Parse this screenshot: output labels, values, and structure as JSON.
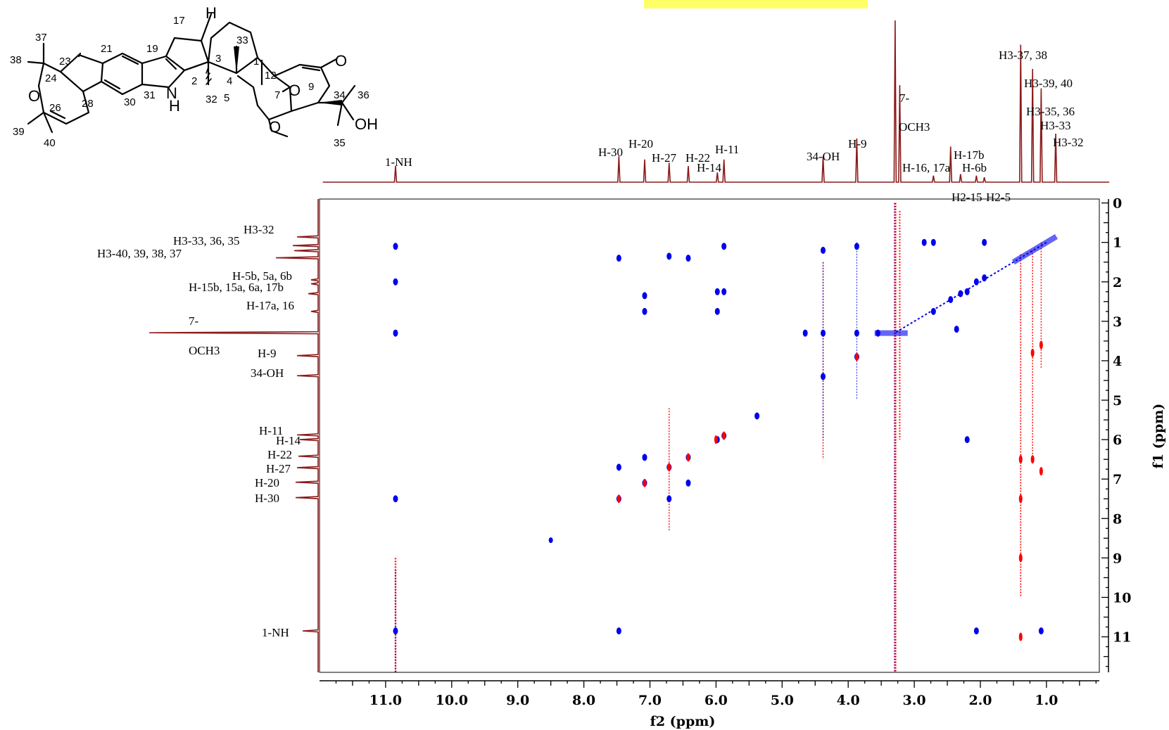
{
  "structure": {
    "atom_labels": [
      "37",
      "38",
      "24",
      "23",
      "21",
      "19",
      "17",
      "33",
      "3",
      "1",
      "2",
      "31",
      "30",
      "28",
      "26",
      "39",
      "40",
      "4",
      "5",
      "12",
      "7",
      "9",
      "34",
      "36",
      "35",
      "32",
      "H",
      "O",
      "O",
      "O",
      "N",
      "H",
      "OH"
    ],
    "methoxy_label": "O"
  },
  "top_labels": [
    "1-NH",
    "H-30",
    "H-20",
    "H-27",
    "H-22",
    "H-14",
    "H-11",
    "34-OH",
    "H-9",
    "7-",
    "OCH3",
    "H-16, 17a",
    "H-17b",
    "H-6b",
    "H2-15",
    "H2-5",
    "H3-37, 38",
    "H3-39, 40",
    "H3-35, 36",
    "H3-33",
    "H3-32"
  ],
  "left_labels": [
    "H3-32",
    "H3-33, 36, 35",
    "H3-40, 39, 38, 37",
    "H-5b, 5a, 6b",
    "H-15b, 15a, 6a, 17b",
    "H-17a, 16",
    "7-",
    "OCH3",
    "H-9",
    "34-OH",
    "H-11",
    "H-14",
    "H-22",
    "H-27",
    "H-20",
    "H-30",
    "1-NH"
  ],
  "colors": {
    "spectrum": "#8b1a1a",
    "positive": "#0000ee",
    "negative": "#ff0000",
    "highlight": "#ffff66"
  },
  "chart_data": {
    "type": "2d-nmr",
    "x_axis": {
      "label": "f2 (ppm)",
      "min": 0.2,
      "max": 12.0,
      "reversed": true,
      "ticks": [
        "1.0",
        "2.0",
        "3.0",
        "4.0",
        "5.0",
        "6.0",
        "7.0",
        "8.0",
        "9.0",
        "10.0",
        "11.0"
      ]
    },
    "y_axis": {
      "label": "f1 (ppm)",
      "min": -0.1,
      "max": 11.9,
      "ticks": [
        "0",
        "1",
        "2",
        "3",
        "4",
        "5",
        "6",
        "7",
        "8",
        "9",
        "10",
        "11"
      ]
    },
    "projection_peaks_f2": [
      {
        "ppm": 10.85,
        "h": 0.1
      },
      {
        "ppm": 7.47,
        "h": 0.16
      },
      {
        "ppm": 7.08,
        "h": 0.14
      },
      {
        "ppm": 6.71,
        "h": 0.12
      },
      {
        "ppm": 6.42,
        "h": 0.1
      },
      {
        "ppm": 5.98,
        "h": 0.06
      },
      {
        "ppm": 5.88,
        "h": 0.14
      },
      {
        "ppm": 4.38,
        "h": 0.16
      },
      {
        "ppm": 3.87,
        "h": 0.27
      },
      {
        "ppm": 3.29,
        "h": 1.0
      },
      {
        "ppm": 3.22,
        "h": 0.6
      },
      {
        "ppm": 2.71,
        "h": 0.04
      },
      {
        "ppm": 2.45,
        "h": 0.22
      },
      {
        "ppm": 2.3,
        "h": 0.05
      },
      {
        "ppm": 2.06,
        "h": 0.04
      },
      {
        "ppm": 1.94,
        "h": 0.03
      },
      {
        "ppm": 1.39,
        "h": 0.85
      },
      {
        "ppm": 1.21,
        "h": 0.7
      },
      {
        "ppm": 1.08,
        "h": 0.58
      },
      {
        "ppm": 0.86,
        "h": 0.3
      }
    ],
    "cross_peaks_positive": [
      [
        10.85,
        1.1
      ],
      [
        10.85,
        2.0
      ],
      [
        10.85,
        3.3
      ],
      [
        10.85,
        7.5
      ],
      [
        10.85,
        10.85
      ],
      [
        7.47,
        1.4
      ],
      [
        7.47,
        6.7
      ],
      [
        7.47,
        7.5
      ],
      [
        7.47,
        10.85
      ],
      [
        7.08,
        2.35
      ],
      [
        7.08,
        2.75
      ],
      [
        7.08,
        6.45
      ],
      [
        7.08,
        7.1
      ],
      [
        6.71,
        1.35
      ],
      [
        6.71,
        6.7
      ],
      [
        6.71,
        7.5
      ],
      [
        6.42,
        1.4
      ],
      [
        6.42,
        6.45
      ],
      [
        6.42,
        7.1
      ],
      [
        5.98,
        2.25
      ],
      [
        5.98,
        2.75
      ],
      [
        5.98,
        6.0
      ],
      [
        5.88,
        1.1
      ],
      [
        5.88,
        2.25
      ],
      [
        5.88,
        5.9
      ],
      [
        5.38,
        5.4
      ],
      [
        4.38,
        1.2
      ],
      [
        4.38,
        3.3
      ],
      [
        4.38,
        4.4
      ],
      [
        3.87,
        1.1
      ],
      [
        3.87,
        3.3
      ],
      [
        3.87,
        3.9
      ],
      [
        3.55,
        3.3
      ],
      [
        4.65,
        3.3
      ],
      [
        2.71,
        2.75
      ],
      [
        2.71,
        1.0
      ],
      [
        2.45,
        2.45
      ],
      [
        2.3,
        2.3
      ],
      [
        2.2,
        2.25
      ],
      [
        2.06,
        2.0
      ],
      [
        2.06,
        10.85
      ],
      [
        1.94,
        1.9
      ],
      [
        2.2,
        6.0
      ],
      [
        2.85,
        1.0
      ],
      [
        2.36,
        3.2
      ],
      [
        1.94,
        1.0
      ],
      [
        1.08,
        10.85
      ]
    ],
    "cross_peaks_negative": [
      [
        7.47,
        7.5
      ],
      [
        7.08,
        7.1
      ],
      [
        6.71,
        6.7
      ],
      [
        6.42,
        6.45
      ],
      [
        5.88,
        5.9
      ],
      [
        6.0,
        6.0
      ],
      [
        3.87,
        3.9
      ],
      [
        1.39,
        6.5
      ],
      [
        1.39,
        7.5
      ],
      [
        1.21,
        6.5
      ],
      [
        1.08,
        6.8
      ],
      [
        1.39,
        9.0
      ],
      [
        1.39,
        11.0
      ],
      [
        1.08,
        3.6
      ],
      [
        1.21,
        3.8
      ]
    ]
  }
}
